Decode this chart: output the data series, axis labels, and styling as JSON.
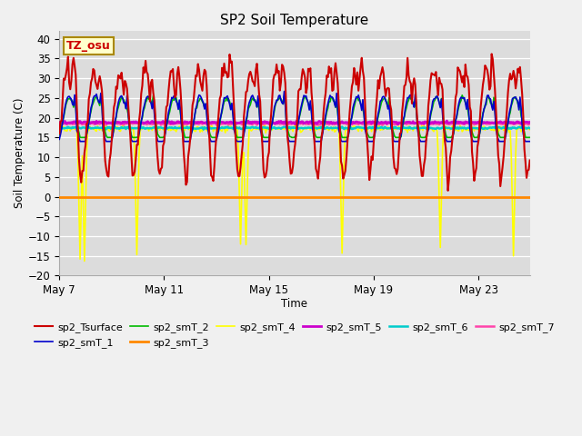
{
  "title": "SP2 Soil Temperature",
  "ylabel": "Soil Temperature (C)",
  "xlabel": "Time",
  "fig_bg": "#f0f0f0",
  "plot_bg": "#dcdcdc",
  "ylim": [
    -20,
    42
  ],
  "yticks": [
    -20,
    -15,
    -10,
    -5,
    0,
    5,
    10,
    15,
    20,
    25,
    30,
    35,
    40
  ],
  "tz_label": "TZ_osu",
  "series": {
    "sp2_Tsurface": {
      "color": "#cc0000",
      "lw": 1.5
    },
    "sp2_smT_1": {
      "color": "#0000cc",
      "lw": 1.2
    },
    "sp2_smT_2": {
      "color": "#00bb00",
      "lw": 1.2
    },
    "sp2_smT_3": {
      "color": "#ff8800",
      "lw": 2.0
    },
    "sp2_smT_4": {
      "color": "#ffff00",
      "lw": 1.2
    },
    "sp2_smT_5": {
      "color": "#cc00cc",
      "lw": 2.0
    },
    "sp2_smT_6": {
      "color": "#00cccc",
      "lw": 1.8
    },
    "sp2_smT_7": {
      "color": "#ff44aa",
      "lw": 1.8
    }
  },
  "xticklabels": [
    "May 7",
    "May 11",
    "May 15",
    "May 19",
    "May 23"
  ],
  "xtick_positions": [
    0,
    96,
    192,
    288,
    384
  ],
  "n_hours": 432
}
